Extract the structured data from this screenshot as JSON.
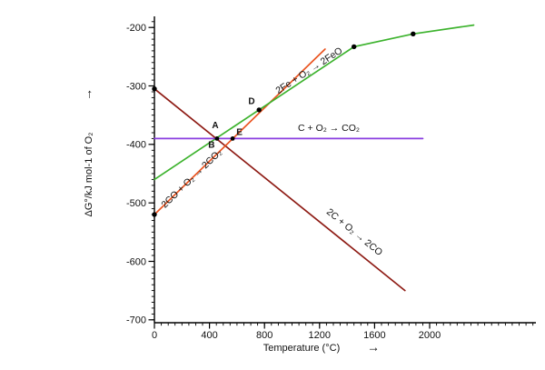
{
  "chart_data": {
    "type": "line",
    "title": "",
    "xlabel": "Temperature (°C)",
    "xlabel_arrow": "→",
    "ylabel": "ΔG°/kJ mol-1 of O₂",
    "ylabel_arrow": "→",
    "xlim": [
      0,
      2772
    ],
    "ylim": [
      -705,
      -181
    ],
    "x_ticks": [
      0,
      400,
      800,
      1200,
      1600,
      2000
    ],
    "x_tick_labels": [
      "0",
      "400",
      "800",
      "1200",
      "1600",
      "2000"
    ],
    "x_minor_step": 50,
    "y_ticks": [
      -700,
      -600,
      -500,
      -400,
      -300,
      -200
    ],
    "y_tick_labels": [
      "-700",
      "-600",
      "-500",
      "-400",
      "-300",
      "-200"
    ],
    "y_minor_step": 10,
    "grid": false,
    "axis_color": "#000000",
    "marker_color": "#000000",
    "series": [
      {
        "name": "carbon-to-co",
        "label": "2C + O₂ → 2CO",
        "color": "#8e1b14",
        "points": [
          [
            0,
            -305
          ],
          [
            1820,
            -650
          ]
        ],
        "markers": [
          [
            0,
            -305
          ]
        ],
        "label_pos": [
          1440,
          -554
        ],
        "label_rotation": 39
      },
      {
        "name": "co-to-co2",
        "label": "2CO + O₂ → 2CO₂",
        "color": "#ea5420",
        "points": [
          [
            0,
            -520
          ],
          [
            1240,
            -237
          ]
        ],
        "markers": [
          [
            0,
            -520
          ]
        ],
        "label_pos": [
          285,
          -462
        ],
        "label_rotation": -44
      },
      {
        "name": "iron-to-feo",
        "label": "2Fe + O₂ → 2FeO",
        "color": "#3db32e",
        "points": [
          [
            0,
            -460
          ],
          [
            1450,
            -233
          ],
          [
            1880,
            -211
          ],
          [
            2320,
            -196
          ]
        ],
        "markers": [
          [
            760,
            -341
          ],
          [
            1450,
            -233
          ],
          [
            1880,
            -211
          ]
        ],
        "label_pos": [
          1135,
          -278
        ],
        "label_rotation": -33
      },
      {
        "name": "carbon-to-co2",
        "label": "C + O₂ → CO₂",
        "color": "#8a3ee0",
        "points": [
          [
            0,
            -390
          ],
          [
            1950,
            -390
          ]
        ],
        "markers": [],
        "label_pos": [
          1267,
          -377
        ],
        "label_rotation": 0
      }
    ],
    "point_labels": [
      {
        "text": "A",
        "x": 442,
        "y": -372
      },
      {
        "text": "B",
        "x": 415,
        "y": -406
      },
      {
        "text": "D",
        "x": 706,
        "y": -331
      },
      {
        "text": "E",
        "x": 618,
        "y": -384
      }
    ],
    "intersection_markers": [
      [
        455,
        -390
      ],
      [
        568,
        -390
      ]
    ]
  }
}
